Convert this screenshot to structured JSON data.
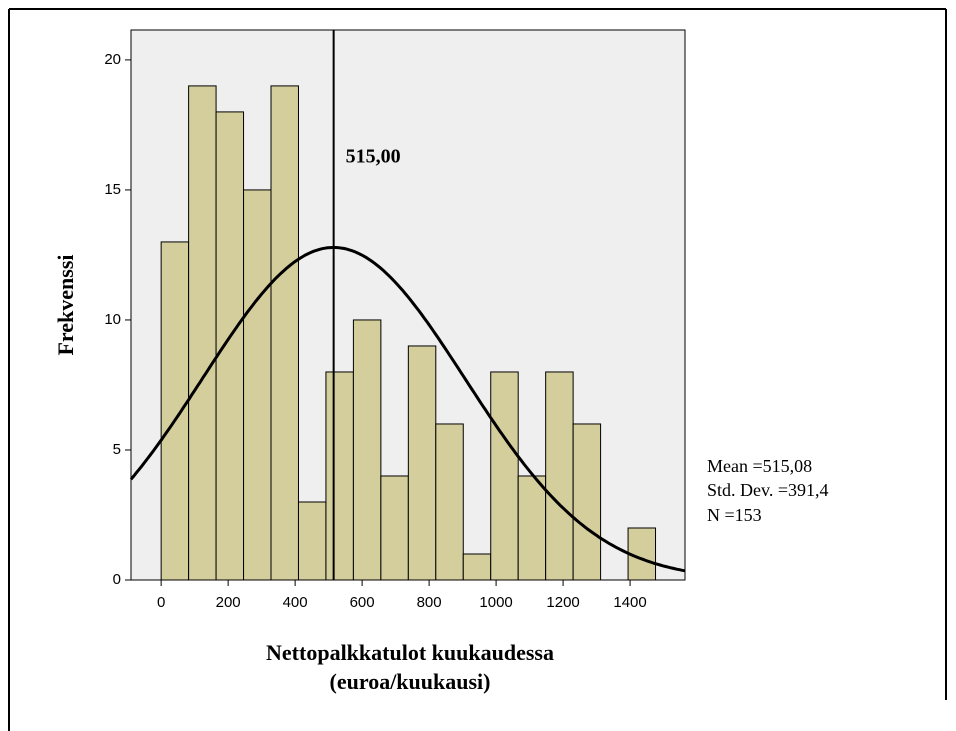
{
  "chart_data": {
    "type": "histogram",
    "xlabel": [
      "Nettopalkkatulot kuukaudessa",
      "(euroa/kuukausi)"
    ],
    "ylabel": "Frekvenssi",
    "bins": [
      0,
      82,
      164,
      246,
      328,
      410,
      492,
      574,
      656,
      738,
      820,
      902,
      984,
      1066,
      1148,
      1230,
      1312,
      1394,
      1476
    ],
    "values": [
      13,
      19,
      18,
      15,
      19,
      3,
      8,
      10,
      4,
      9,
      6,
      1,
      8,
      4,
      8,
      6,
      0,
      2
    ],
    "color": "#d3ce9b",
    "xlim": [
      -90,
      1564
    ],
    "ylim": [
      0,
      21.15
    ],
    "xticks": [
      0,
      200,
      400,
      600,
      800,
      1000,
      1200,
      1400
    ],
    "yticks": [
      0,
      5,
      10,
      15,
      20
    ],
    "reference_line": {
      "value": 515,
      "label": "515,00"
    },
    "normal_curve": {
      "mean": 515.08,
      "std": 391.4,
      "n": 153,
      "value_labels": {
        "mean": "Mean =515,08",
        "std": "Std. Dev. =391,4",
        "n": "N =153"
      }
    }
  }
}
